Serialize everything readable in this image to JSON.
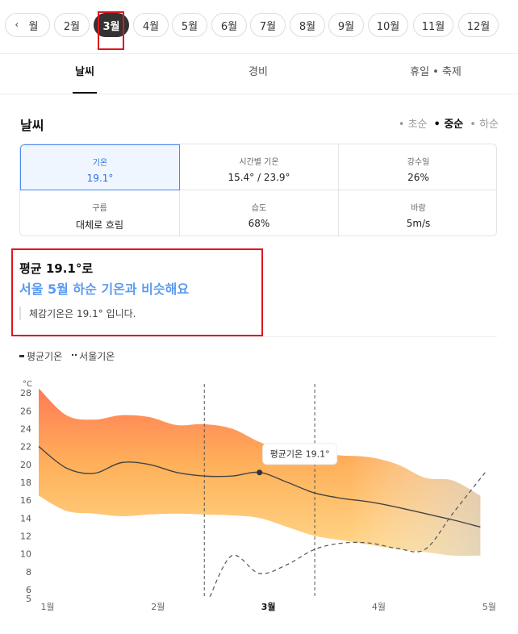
{
  "months": {
    "prev_icon": "chevron-left-icon",
    "items": [
      "월",
      "2월",
      "3월",
      "4월",
      "5월",
      "6월",
      "7월",
      "8월",
      "9월",
      "10월",
      "11월",
      "12월"
    ],
    "active": "3월"
  },
  "tabs": [
    "날씨",
    "경비",
    "휴일 • 축제"
  ],
  "section_title": "날씨",
  "period": [
    "• 초순",
    "• 중순",
    "• 하순"
  ],
  "period_active": "• 중순",
  "stats": [
    {
      "label": "기온",
      "value": "19.1°"
    },
    {
      "label": "시간별 기온",
      "value": "15.4° / 23.9°"
    },
    {
      "label": "강수일",
      "value": "26%"
    },
    {
      "label": "구름",
      "value": "대체로 흐림"
    },
    {
      "label": "습도",
      "value": "68%"
    },
    {
      "label": "바람",
      "value": "5m/s"
    }
  ],
  "summary": {
    "line1": "평균 19.1°로",
    "line2": "서울 5월 하순 기온과 비슷해요",
    "line3": "체감기온은 19.1° 입니다."
  },
  "legend": {
    "avg": "평균기온",
    "seoul": "서울기온"
  },
  "colors": {
    "accent": "#5b9bf0",
    "selected": "#2a6fe0",
    "highlight": "#e0161e"
  },
  "chart_data": {
    "type": "area",
    "yunit": "°C",
    "ylim": [
      5,
      29
    ],
    "yticks": [
      5,
      6,
      8,
      10,
      12,
      14,
      16,
      18,
      20,
      22,
      24,
      26,
      28
    ],
    "xlim": [
      1,
      5.1
    ],
    "xticks": [
      {
        "x": 1,
        "label": "1월"
      },
      {
        "x": 2,
        "label": "2월"
      },
      {
        "x": 3,
        "label": "3월"
      },
      {
        "x": 4,
        "label": "4월"
      },
      {
        "x": 5,
        "label": "5월"
      }
    ],
    "x_active": "3월",
    "x": [
      1,
      1.25,
      1.5,
      1.75,
      2,
      2.25,
      2.5,
      2.75,
      3,
      3.25,
      3.5,
      3.75,
      4,
      4.25,
      4.5,
      4.75,
      5
    ],
    "series": [
      {
        "name": "평균기온 최고",
        "values": [
          28.5,
          25.5,
          25.0,
          25.5,
          25.3,
          24.4,
          24.5,
          24.0,
          22.5,
          21.5,
          21.2,
          21.0,
          20.8,
          20.0,
          18.5,
          18.2,
          16.5
        ]
      },
      {
        "name": "평균기온 최저",
        "values": [
          16.5,
          14.8,
          14.5,
          14.2,
          14.4,
          14.5,
          14.4,
          14.3,
          14.0,
          13.0,
          12.0,
          11.5,
          11.0,
          10.5,
          10.2,
          9.8,
          9.8
        ]
      },
      {
        "name": "평균기온",
        "values": [
          22,
          19.6,
          19,
          20.2,
          20,
          19.1,
          18.7,
          18.7,
          19.1,
          18,
          16.8,
          16.2,
          15.8,
          15.2,
          14.5,
          13.8,
          13.0
        ]
      }
    ],
    "seoul": {
      "name": "서울기온",
      "x": [
        2.55,
        2.75,
        3.0,
        3.25,
        3.5,
        3.75,
        4.0,
        4.25,
        4.5,
        4.75,
        5.05
      ],
      "values": [
        5.2,
        9.8,
        7.8,
        8.8,
        10.5,
        11.2,
        11.2,
        10.6,
        10.5,
        14.5,
        19.2
      ]
    },
    "vlines": [
      2.5,
      3.5
    ],
    "annotation": {
      "text": "평균기온 19.1°",
      "x": 3,
      "y": 19.1
    }
  }
}
